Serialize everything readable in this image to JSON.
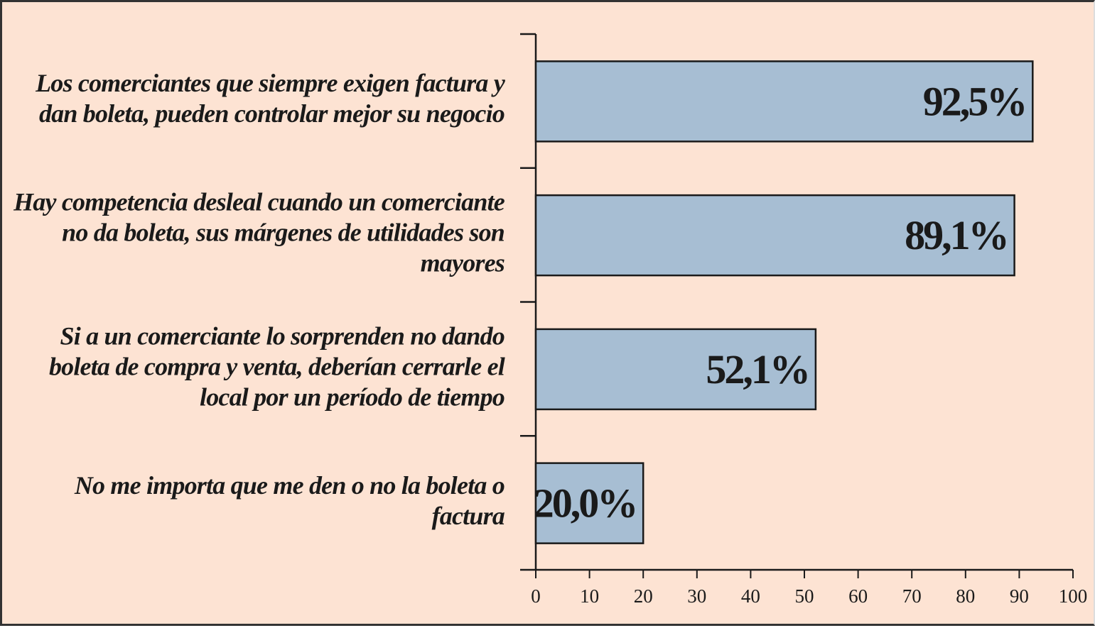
{
  "chart_data": {
    "type": "bar",
    "orientation": "horizontal",
    "categories": [
      "Los comerciantes que siempre exigen factura y dan boleta, pueden controlar mejor su negocio",
      "Hay competencia desleal cuando un comerciante no da boleta, sus márgenes de utilidades son mayores",
      "Si a un comerciante lo sorprenden no dando boleta de compra y venta, deberían cerrarle el local por un período de tiempo",
      "No me importa que me den o no la boleta o factura"
    ],
    "values": [
      92.5,
      89.1,
      52.1,
      20.0
    ],
    "value_labels": [
      "92,5%",
      "89,1%",
      "52,1%",
      "20,0%"
    ],
    "color": "#a7bed3",
    "xlim": [
      0,
      100
    ],
    "xticks": [
      0,
      10,
      20,
      30,
      40,
      50,
      60,
      70,
      80,
      90,
      100
    ]
  }
}
